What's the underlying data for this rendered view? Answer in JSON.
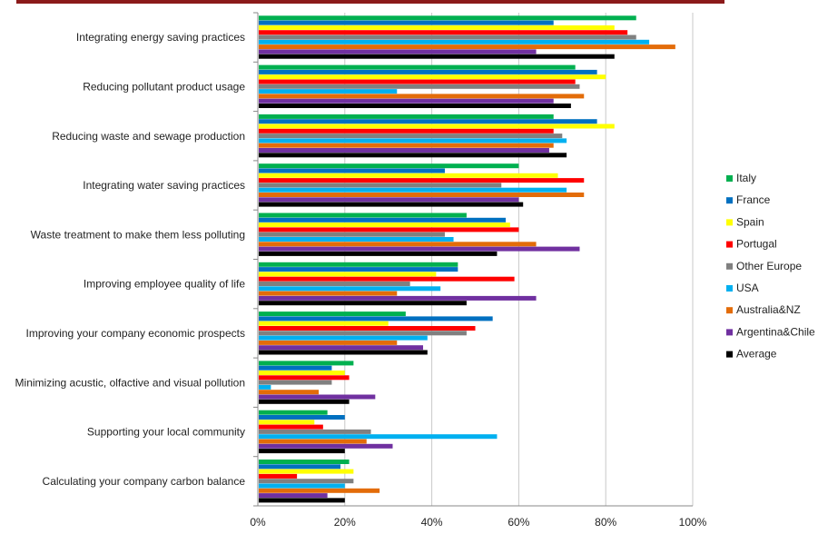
{
  "chart_data": {
    "type": "bar",
    "orientation": "horizontal",
    "grid": true,
    "legend_position": "right",
    "xlim": [
      0,
      100
    ],
    "x_ticks": [
      "0%",
      "20%",
      "40%",
      "60%",
      "80%",
      "100%"
    ],
    "categories": [
      "Integrating energy saving practices",
      "Reducing pollutant product usage",
      "Reducing waste and sewage production",
      "Integrating water saving practices",
      "Waste treatment to make them less polluting",
      "Improving employee quality of life",
      "Improving your company economic prospects",
      "Minimizing acustic, olfactive and visual pollution",
      "Supporting your local community",
      "Calculating your company carbon balance"
    ],
    "series": [
      {
        "name": "Italy",
        "color": "#00b050",
        "values": [
          87,
          73,
          68,
          60,
          48,
          46,
          34,
          22,
          16,
          21
        ]
      },
      {
        "name": "France",
        "color": "#0070c0",
        "values": [
          68,
          78,
          78,
          43,
          57,
          46,
          54,
          17,
          20,
          19
        ]
      },
      {
        "name": "Spain",
        "color": "#ffff00",
        "values": [
          82,
          80,
          82,
          69,
          58,
          41,
          30,
          20,
          13,
          22
        ]
      },
      {
        "name": "Portugal",
        "color": "#ff0000",
        "values": [
          85,
          73,
          68,
          75,
          60,
          59,
          50,
          21,
          15,
          9
        ]
      },
      {
        "name": "Other Europe",
        "color": "#808080",
        "values": [
          87,
          74,
          70,
          56,
          43,
          35,
          48,
          17,
          26,
          22
        ]
      },
      {
        "name": "USA",
        "color": "#00b0f0",
        "values": [
          90,
          32,
          71,
          71,
          45,
          42,
          39,
          3,
          55,
          20
        ]
      },
      {
        "name": "Australia&NZ",
        "color": "#e36c09",
        "values": [
          96,
          75,
          68,
          75,
          64,
          32,
          32,
          14,
          25,
          28
        ]
      },
      {
        "name": "Argentina&Chile",
        "color": "#7030a0",
        "values": [
          64,
          68,
          67,
          60,
          74,
          64,
          38,
          27,
          31,
          16
        ]
      },
      {
        "name": "Average",
        "color": "#000000",
        "values": [
          82,
          72,
          71,
          61,
          55,
          48,
          39,
          21,
          20,
          20
        ]
      }
    ]
  }
}
